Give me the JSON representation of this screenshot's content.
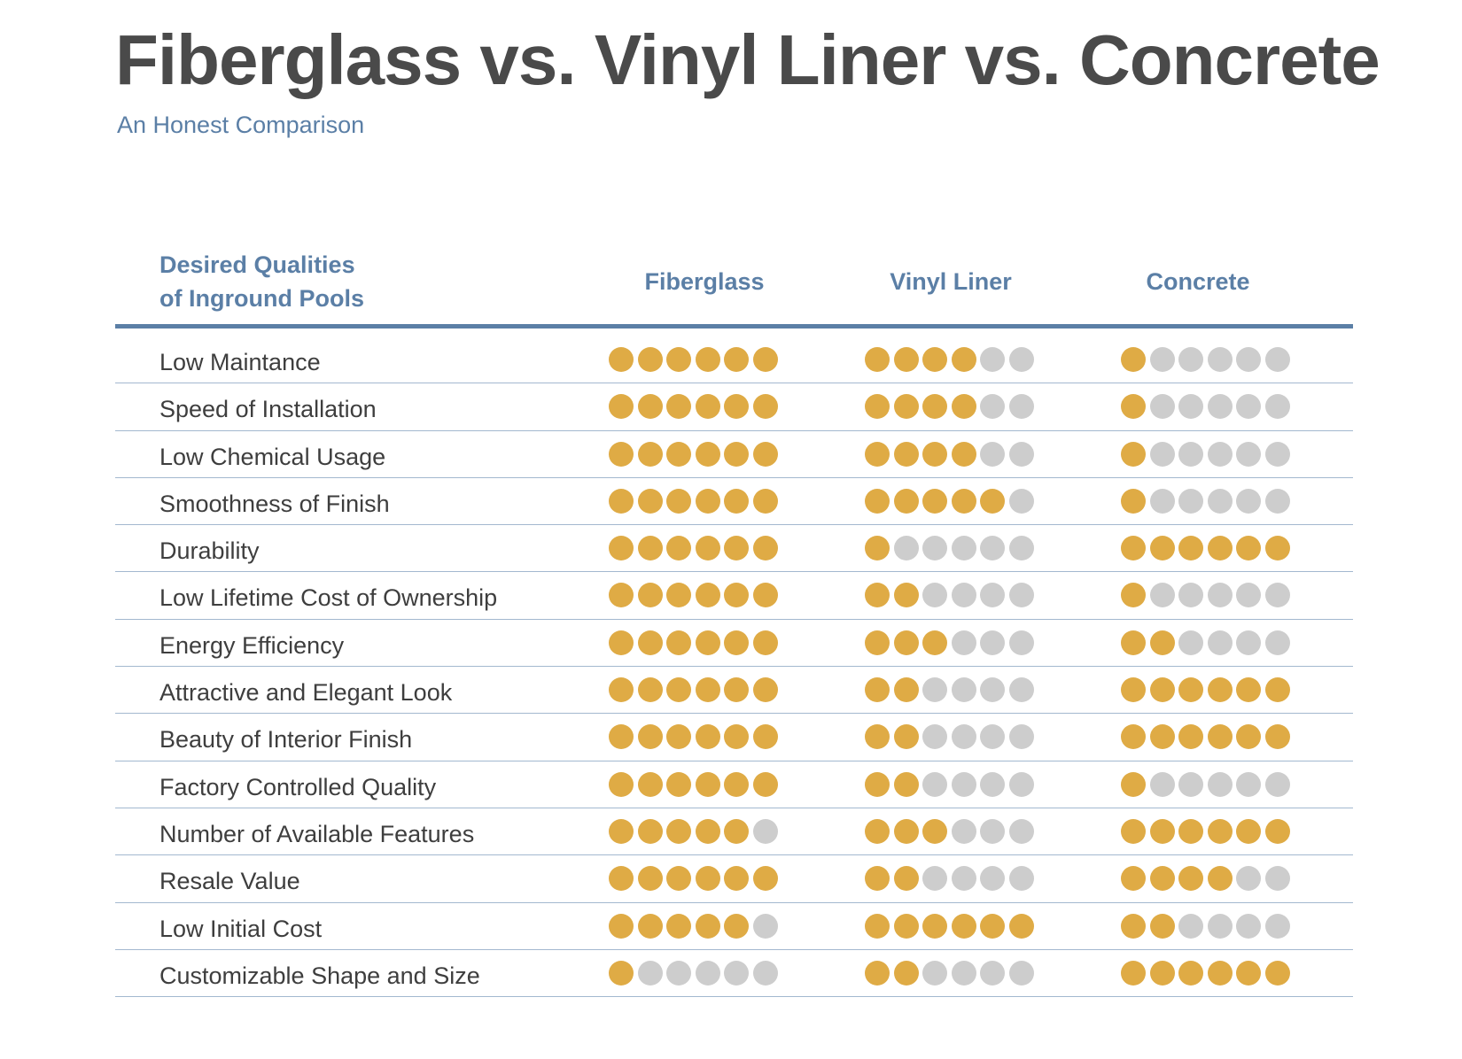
{
  "title": "Fiberglass vs. Vinyl Liner vs. Concrete",
  "subtitle": "An Honest Comparison",
  "header": {
    "qualities_line1": "Desired Qualities",
    "qualities_line2": "of Inground Pools",
    "columns": [
      "Fiberglass",
      "Vinyl Liner",
      "Concrete"
    ]
  },
  "colors": {
    "filled": "#dfab45",
    "empty": "#cdcdcd",
    "accent": "#5b7fa6",
    "title": "#4a4a4a"
  },
  "chart_data": {
    "type": "table",
    "title": "Fiberglass vs. Vinyl Liner vs. Concrete",
    "subtitle": "An Honest Comparison",
    "max_rating": 6,
    "columns": [
      "Fiberglass",
      "Vinyl Liner",
      "Concrete"
    ],
    "rows": [
      {
        "quality": "Low Maintance",
        "ratings": [
          6,
          4,
          1
        ]
      },
      {
        "quality": "Speed of Installation",
        "ratings": [
          6,
          4,
          1
        ]
      },
      {
        "quality": "Low Chemical Usage",
        "ratings": [
          6,
          4,
          1
        ]
      },
      {
        "quality": "Smoothness of Finish",
        "ratings": [
          6,
          5,
          1
        ]
      },
      {
        "quality": "Durability",
        "ratings": [
          6,
          1,
          6
        ]
      },
      {
        "quality": "Low Lifetime Cost of Ownership",
        "ratings": [
          6,
          2,
          1
        ]
      },
      {
        "quality": "Energy Efficiency",
        "ratings": [
          6,
          3,
          2
        ]
      },
      {
        "quality": "Attractive and Elegant Look",
        "ratings": [
          6,
          2,
          6
        ]
      },
      {
        "quality": "Beauty of Interior Finish",
        "ratings": [
          6,
          2,
          6
        ]
      },
      {
        "quality": "Factory Controlled Quality",
        "ratings": [
          6,
          2,
          1
        ]
      },
      {
        "quality": "Number of Available Features",
        "ratings": [
          5,
          3,
          6
        ]
      },
      {
        "quality": "Resale Value",
        "ratings": [
          6,
          2,
          4
        ]
      },
      {
        "quality": "Low Initial Cost",
        "ratings": [
          5,
          6,
          2
        ]
      },
      {
        "quality": "Customizable Shape and Size",
        "ratings": [
          1,
          2,
          6
        ]
      }
    ]
  }
}
